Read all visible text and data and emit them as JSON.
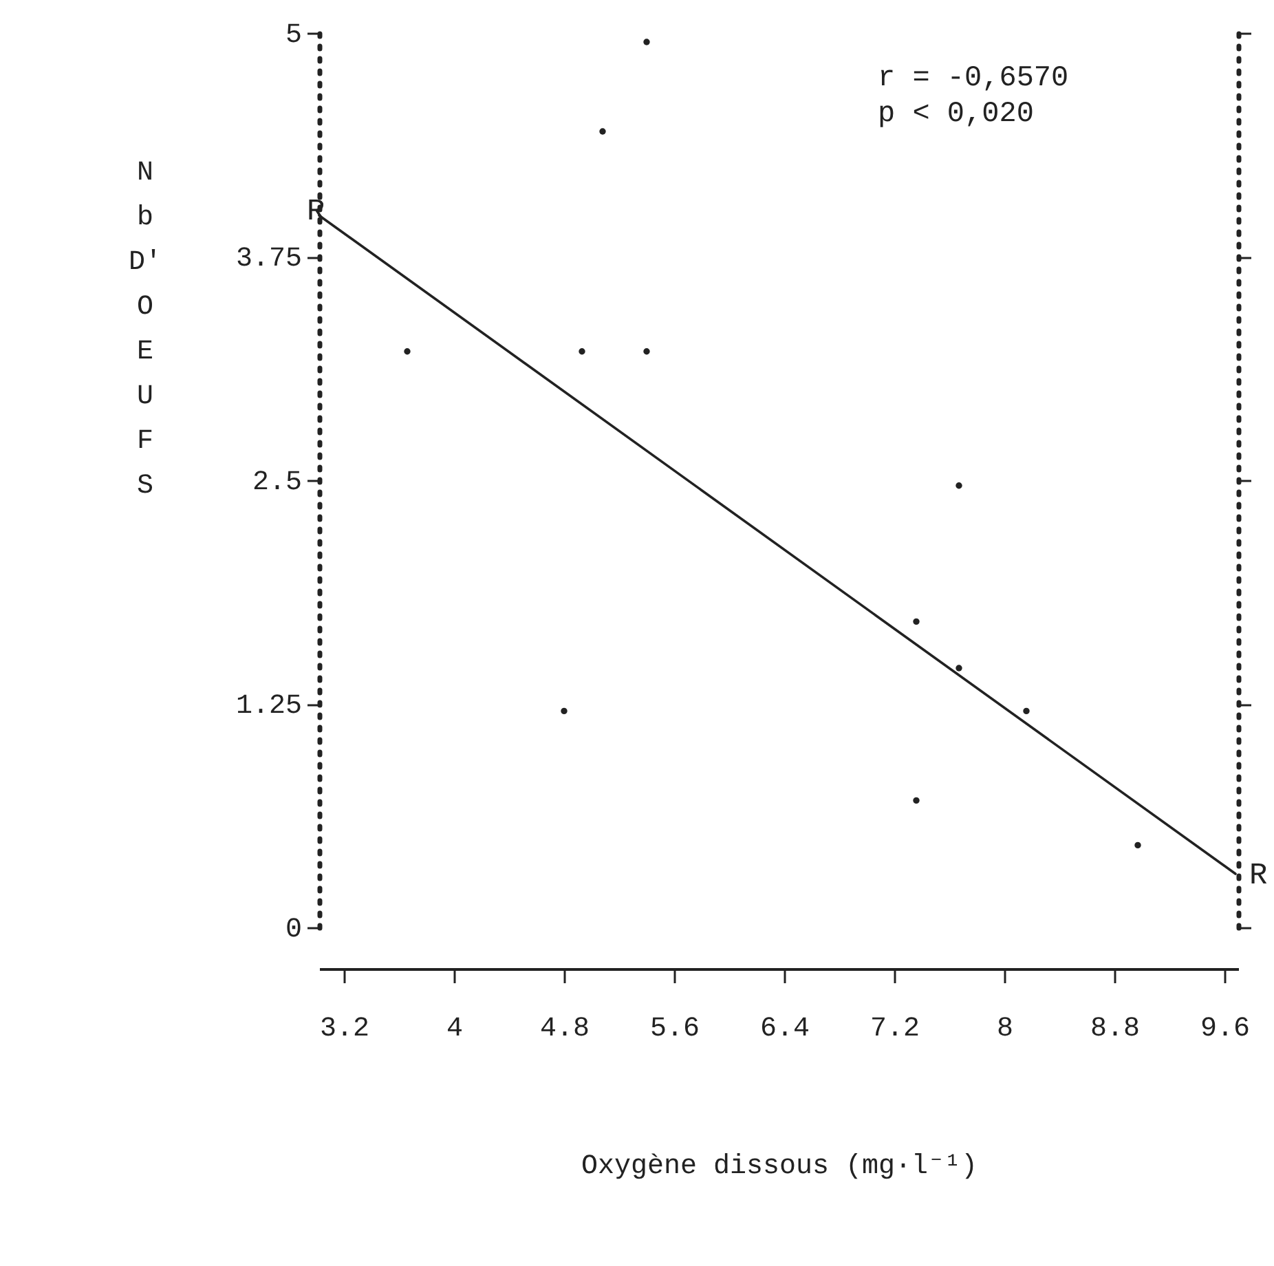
{
  "chart_data": {
    "type": "scatter",
    "xlabel": "Oxygène dissous (mg·l⁻¹)",
    "ylabel": "Nb D'OEUFS",
    "xlim": [
      3.02,
      9.7
    ],
    "ylim": [
      0,
      5
    ],
    "xticks": [
      3.2,
      4,
      4.8,
      5.6,
      6.4,
      7.2,
      8,
      8.8,
      9.6
    ],
    "yticks": [
      0,
      1.25,
      2.5,
      3.75,
      5
    ],
    "annotations": [
      "r = -0,6570",
      "p <  0,020",
      {
        "text": "R",
        "x": 3.02,
        "y": 3.98
      },
      {
        "text": "R",
        "x": 9.68,
        "y": 0.3
      }
    ],
    "series": [
      {
        "type": "scatter",
        "marker": "circle",
        "color": "#222222",
        "x": [
          5.4,
          5.08,
          3.66,
          4.93,
          5.4,
          7.67,
          7.36,
          7.67,
          4.8,
          8.16,
          7.36,
          8.97
        ],
        "values": [
          4.95,
          4.45,
          3.22,
          3.22,
          3.22,
          2.47,
          1.71,
          1.45,
          1.21,
          1.21,
          0.71,
          0.46
        ]
      },
      {
        "type": "line",
        "color": "#222222",
        "x": [
          3.02,
          9.68
        ],
        "values": [
          3.98,
          0.3
        ]
      }
    ]
  }
}
